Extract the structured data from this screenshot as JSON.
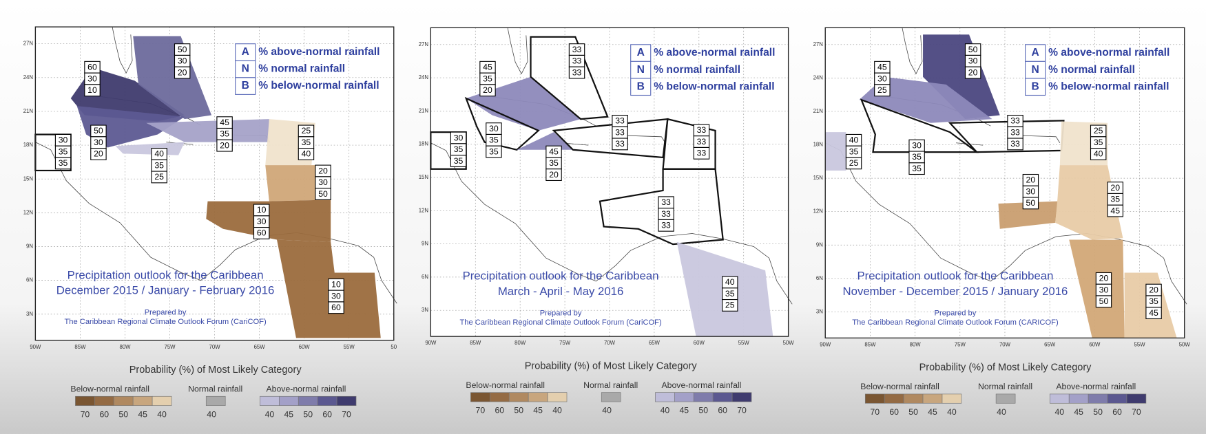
{
  "key": {
    "rows": [
      {
        "letter": "A",
        "text": "% above-normal rainfall"
      },
      {
        "letter": "N",
        "text": "% normal rainfall"
      },
      {
        "letter": "B",
        "text": "% below-normal rainfall"
      }
    ]
  },
  "latitude_labels": [
    "27N",
    "24N",
    "21N",
    "18N",
    "15N",
    "12N",
    "9N",
    "6N",
    "3N"
  ],
  "legend": {
    "title": "Probability (%) of Most Likely Category",
    "below": {
      "label": "Below-normal rainfall",
      "ticks": [
        70,
        60,
        50,
        45,
        40
      ],
      "colors": [
        "#7a5632",
        "#946b44",
        "#b08960",
        "#c8a67e",
        "#e4cfae"
      ]
    },
    "normal": {
      "label": "Normal rainfall",
      "ticks": [
        40
      ],
      "colors": [
        "#a9a9a9"
      ]
    },
    "above": {
      "label": "Above-normal rainfall",
      "ticks": [
        40,
        45,
        50,
        60,
        70
      ],
      "colors": [
        "#bfbdd9",
        "#a3a0c8",
        "#7f7cab",
        "#5b5890",
        "#3f3b6e"
      ]
    }
  },
  "panels": [
    {
      "title": "Precipitation outlook for the Caribbean",
      "period": "December 2015 / January - February 2016",
      "prepared_by": "Prepared by",
      "forum": "The Caribbean Regional Climate Outlook Forum (CariCOF)",
      "longitude_labels": [
        "90W",
        "85W",
        "80W",
        "75W",
        "70W",
        "65W",
        "60W",
        "55W",
        "50"
      ],
      "regions": [
        {
          "values": [
            60,
            30,
            10
          ],
          "color": "#3f3b6e"
        },
        {
          "values": [
            50,
            30,
            20
          ],
          "color": "#6d6a9c"
        },
        {
          "values": [
            50,
            30,
            20
          ],
          "color": "#5d5a92"
        },
        {
          "values": [
            45,
            35,
            20
          ],
          "color": "#a5a2c8"
        },
        {
          "values": [
            30,
            35,
            35
          ]
        },
        {
          "values": [
            40,
            35,
            25
          ],
          "color": "#c9c7de"
        },
        {
          "values": [
            25,
            35,
            40
          ],
          "color": "#f0e3cc"
        },
        {
          "values": [
            20,
            30,
            50
          ],
          "color": "#d0a678"
        },
        {
          "values": [
            10,
            30,
            60
          ],
          "color": "#9b6b3d"
        },
        {
          "values": [
            10,
            30,
            60
          ],
          "color": "#9b6b3d"
        }
      ]
    },
    {
      "title": "Precipitation outlook for the Caribbean",
      "period": "March - April - May 2016",
      "prepared_by": "Prepared by",
      "forum": "The Caribbean Regional Climate Outlook Forum (CariCOF)",
      "longitude_labels": [
        "90W",
        "85W",
        "80W",
        "75W",
        "70W",
        "65W",
        "60W",
        "55W",
        "50W"
      ],
      "regions": [
        {
          "values": [
            45,
            35,
            20
          ],
          "color": "#8d89bb"
        },
        {
          "values": [
            33,
            33,
            33
          ]
        },
        {
          "values": [
            30,
            35,
            35
          ]
        },
        {
          "values": [
            30,
            35,
            35
          ]
        },
        {
          "values": [
            45,
            35,
            20
          ],
          "color": "#8d89bb"
        },
        {
          "values": [
            33,
            33,
            33
          ]
        },
        {
          "values": [
            33,
            33,
            33
          ]
        },
        {
          "values": [
            33,
            33,
            33
          ]
        },
        {
          "values": [
            40,
            35,
            25
          ],
          "color": "#c9c7de"
        }
      ]
    },
    {
      "title": "Precipitation outlook for the Caribbean",
      "period": "November - December 2015 / January 2016",
      "prepared_by": "Prepared by",
      "forum": "The Caribbean Regional Climate Outlook Forum (CARICOF)",
      "longitude_labels": [
        "90W",
        "85W",
        "80W",
        "75W",
        "70W",
        "65W",
        "60W",
        "55W",
        "50W"
      ],
      "regions": [
        {
          "values": [
            50,
            30,
            20
          ],
          "color": "#4b4780"
        },
        {
          "values": [
            45,
            30,
            25
          ],
          "color": "#8d89bb"
        },
        {
          "values": [
            40,
            35,
            25
          ],
          "color": "#c9c7de"
        },
        {
          "values": [
            30,
            35,
            35
          ]
        },
        {
          "values": [
            33,
            33,
            33
          ]
        },
        {
          "values": [
            25,
            35,
            40
          ],
          "color": "#f0e3cc"
        },
        {
          "values": [
            20,
            30,
            50
          ],
          "color": "#c99e70"
        },
        {
          "values": [
            20,
            35,
            45
          ],
          "color": "#e8cba6"
        },
        {
          "values": [
            20,
            30,
            50
          ],
          "color": "#d2a877"
        },
        {
          "values": [
            20,
            35,
            45
          ],
          "color": "#e8cba6"
        }
      ]
    }
  ]
}
